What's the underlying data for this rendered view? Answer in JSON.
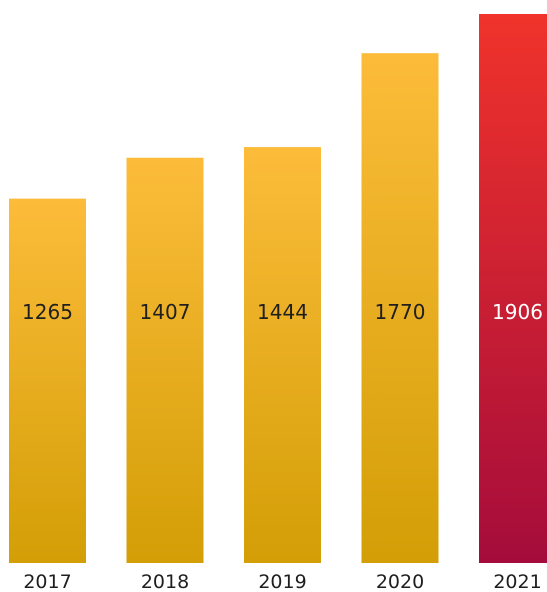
{
  "chart_data": {
    "type": "bar",
    "categories": [
      "2017",
      "2018",
      "2019",
      "2020",
      "2021"
    ],
    "values": [
      1265,
      1407,
      1444,
      1770,
      1906
    ],
    "title": "",
    "xlabel": "",
    "ylabel": "",
    "ylim": [
      0,
      1906
    ],
    "grid": false,
    "legend": "none",
    "data_labels": "inside-center",
    "highlight_index": 4
  },
  "colors": {
    "default_bar_top": "#fcbc3a",
    "default_bar_bottom": "#d39e06",
    "default_label": "#1f1f1f",
    "highlight_bar_top": "#f0332b",
    "highlight_bar_bottom": "#a50c3b",
    "highlight_label": "#ffffff",
    "axis_label": "#1f1f1f"
  }
}
